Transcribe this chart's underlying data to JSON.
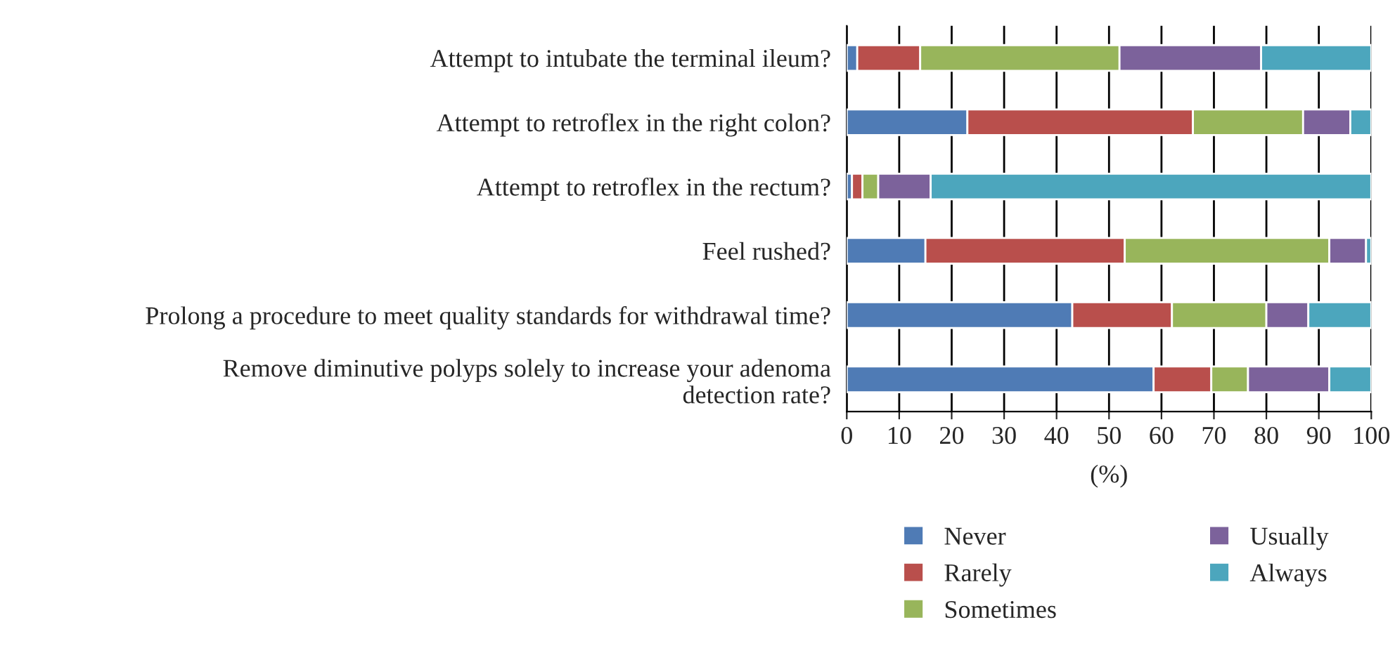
{
  "chart_data": {
    "type": "bar",
    "orientation": "horizontal",
    "stacked": true,
    "categories": [
      "Attempt to intubate the terminal ileum?",
      "Attempt to retroflex in the right colon?",
      "Attempt to retroflex in the rectum?",
      "Feel rushed?",
      "Prolong a procedure to meet quality standards for withdrawal time?",
      "Remove diminutive polyps solely to increase your adenoma\ndetection rate?"
    ],
    "series": [
      {
        "name": "Never",
        "color": "#4f7bb5",
        "values": [
          2,
          23,
          1,
          15,
          43,
          58.5
        ]
      },
      {
        "name": "Rarely",
        "color": "#b94f4c",
        "values": [
          12,
          43,
          2,
          38,
          19,
          11
        ]
      },
      {
        "name": "Sometimes",
        "color": "#98b55b",
        "values": [
          38,
          21,
          3,
          39,
          18,
          7
        ]
      },
      {
        "name": "Usually",
        "color": "#7c629b",
        "values": [
          27,
          9,
          10,
          7,
          8,
          15.5
        ]
      },
      {
        "name": "Always",
        "color": "#4ca6bd",
        "values": [
          21,
          4,
          84,
          1,
          12,
          8
        ]
      }
    ],
    "xlabel": "(%)",
    "xlim": [
      0,
      100
    ],
    "xticks": [
      0,
      10,
      20,
      30,
      40,
      50,
      60,
      70,
      80,
      90,
      100
    ],
    "grid": "x",
    "legend": "bottom"
  }
}
